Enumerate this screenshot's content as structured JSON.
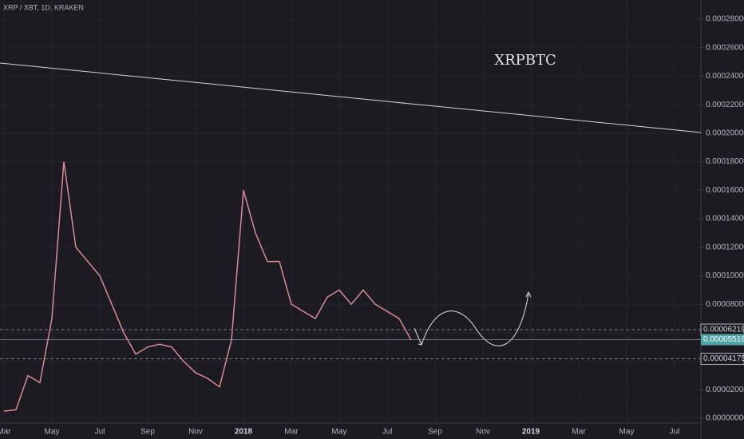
{
  "chart_data": {
    "type": "line",
    "title": "XRP / XBT, 1D, KRAKEN",
    "annotation": "XRPBTC",
    "categories": [
      "Mar",
      null,
      null,
      null,
      "May",
      null,
      null,
      null,
      "Jul",
      null,
      null,
      null,
      "Sep",
      null,
      null,
      null,
      "Nov",
      null,
      null,
      null,
      "2018",
      null,
      null,
      null,
      "Mar",
      null,
      null,
      null,
      "May",
      null,
      null,
      null,
      "Jul",
      null,
      null,
      null,
      "Sep",
      null,
      null,
      null,
      "Nov",
      null,
      null,
      null,
      "2019",
      null,
      null,
      null,
      "Mar",
      null,
      null,
      null,
      "May",
      null,
      null,
      null,
      "Jul",
      null,
      null
    ],
    "series": [
      {
        "name": "XRP / XBT",
        "color": "#d98a97",
        "values": [
          5e-06,
          6e-06,
          3e-05,
          2.5e-05,
          7e-05,
          0.00018,
          0.00012,
          0.00011,
          0.0001,
          8e-05,
          6e-05,
          4.5e-05,
          5e-05,
          5.2e-05,
          5e-05,
          4e-05,
          3.2e-05,
          2.8e-05,
          2.2e-05,
          5.5e-05,
          0.00016,
          0.00013,
          0.00011,
          0.00011,
          8e-05,
          7.5e-05,
          7e-05,
          8.5e-05,
          9e-05,
          8e-05,
          9e-05,
          8e-05,
          7.5e-05,
          7e-05,
          5.5e-05,
          null,
          null,
          null,
          null,
          null,
          null,
          null,
          null,
          null,
          null,
          null,
          null,
          null,
          null,
          null,
          null,
          null,
          null,
          null,
          null,
          null,
          null,
          null,
          null
        ]
      }
    ],
    "ylim": [
      -1.45e-05,
      0.0002934
    ],
    "yticks": [
      {
        "value": 0,
        "label": "0.00000000"
      },
      {
        "value": 2e-05,
        "label": "0.00002000"
      },
      {
        "value": 4e-05,
        "label": "0.00004000"
      },
      {
        "value": 6e-05,
        "label": "0.00006000"
      },
      {
        "value": 8e-05,
        "label": "0.00008000"
      },
      {
        "value": 0.0001,
        "label": "0.00010000"
      },
      {
        "value": 0.00012,
        "label": "0.00012000"
      },
      {
        "value": 0.00014,
        "label": "0.00014000"
      },
      {
        "value": 0.00016,
        "label": "0.00016000"
      },
      {
        "value": 0.00018,
        "label": "0.00018000"
      },
      {
        "value": 0.0002,
        "label": "0.00020000"
      },
      {
        "value": 0.00022,
        "label": "0.00022000"
      },
      {
        "value": 0.00024,
        "label": "0.00024000"
      },
      {
        "value": 0.00026,
        "label": "0.00026000"
      },
      {
        "value": 0.00028,
        "label": "0.00028000"
      }
    ],
    "price_lines": [
      {
        "value": 6.219e-05,
        "style": "dashed"
      },
      {
        "value": 5.519e-05,
        "style": "current"
      },
      {
        "value": 4.175e-05,
        "style": "dashed"
      }
    ],
    "grid": true
  }
}
